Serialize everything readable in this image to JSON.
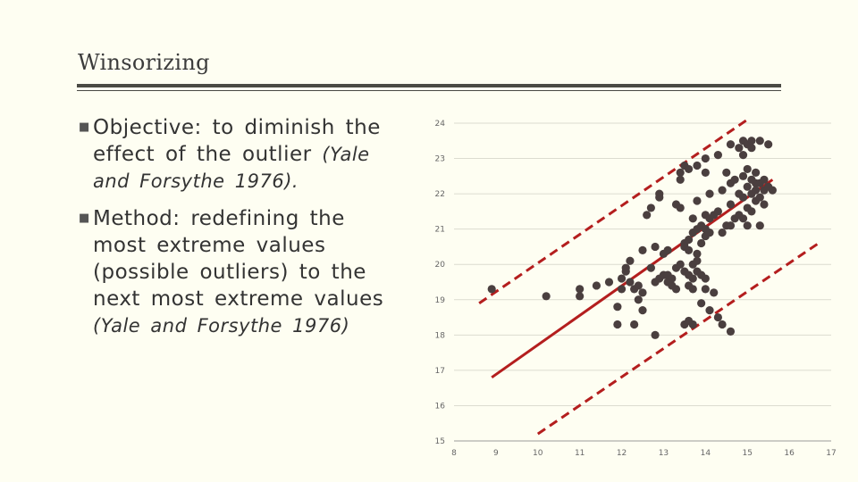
{
  "slide": {
    "title": "Winsorizing",
    "bullets": [
      {
        "text": "Objective: to diminish the effect of the outlier ",
        "citation": "(Yale and Forsythe 1976)."
      },
      {
        "text": "Method: redefining the most extreme values (possible outliers) to the next most extreme values ",
        "citation": "(Yale and Forsythe 1976)"
      }
    ]
  },
  "colors": {
    "points": "#4a3f3f",
    "fit_line": "#b41e1e",
    "bounds": "#b41e1e",
    "grid": "#dcdcd0"
  },
  "icons": {
    "bullet": "square-bullet-icon"
  },
  "chart_data": {
    "type": "scatter",
    "title": "",
    "xlabel": "",
    "ylabel": "",
    "xlim": [
      8,
      17
    ],
    "ylim": [
      15,
      24
    ],
    "x_ticks": [
      8,
      9,
      10,
      11,
      12,
      13,
      14,
      15,
      16,
      17
    ],
    "y_ticks": [
      15,
      16,
      17,
      18,
      19,
      20,
      21,
      22,
      23,
      24
    ],
    "grid": "horizontal",
    "points": [
      [
        8.9,
        19.3
      ],
      [
        10.2,
        19.1
      ],
      [
        11.0,
        19.3
      ],
      [
        11.0,
        19.1
      ],
      [
        11.4,
        19.4
      ],
      [
        11.7,
        19.5
      ],
      [
        11.9,
        18.3
      ],
      [
        11.9,
        18.8
      ],
      [
        12.0,
        19.6
      ],
      [
        12.0,
        19.3
      ],
      [
        12.1,
        19.8
      ],
      [
        12.1,
        19.9
      ],
      [
        12.2,
        20.1
      ],
      [
        12.2,
        19.5
      ],
      [
        12.3,
        19.3
      ],
      [
        12.4,
        19.4
      ],
      [
        12.5,
        20.4
      ],
      [
        12.5,
        19.2
      ],
      [
        12.5,
        18.7
      ],
      [
        12.6,
        21.4
      ],
      [
        12.7,
        21.6
      ],
      [
        12.7,
        19.9
      ],
      [
        12.8,
        19.5
      ],
      [
        12.8,
        18.0
      ],
      [
        12.8,
        20.5
      ],
      [
        12.9,
        22.0
      ],
      [
        12.9,
        21.9
      ],
      [
        12.9,
        19.6
      ],
      [
        13.0,
        19.7
      ],
      [
        13.0,
        20.3
      ],
      [
        13.1,
        19.5
      ],
      [
        13.1,
        19.7
      ],
      [
        13.2,
        19.4
      ],
      [
        13.2,
        19.6
      ],
      [
        13.3,
        21.7
      ],
      [
        13.3,
        19.9
      ],
      [
        13.3,
        19.3
      ],
      [
        13.4,
        22.6
      ],
      [
        13.4,
        22.4
      ],
      [
        13.4,
        20.0
      ],
      [
        13.5,
        22.8
      ],
      [
        13.5,
        20.6
      ],
      [
        13.5,
        20.5
      ],
      [
        13.5,
        19.8
      ],
      [
        13.5,
        18.3
      ],
      [
        13.6,
        22.7
      ],
      [
        13.6,
        20.7
      ],
      [
        13.6,
        20.4
      ],
      [
        13.6,
        19.7
      ],
      [
        13.6,
        19.4
      ],
      [
        13.6,
        18.4
      ],
      [
        13.7,
        21.3
      ],
      [
        13.7,
        20.9
      ],
      [
        13.7,
        20.0
      ],
      [
        13.7,
        19.6
      ],
      [
        13.7,
        19.3
      ],
      [
        13.7,
        18.3
      ],
      [
        13.8,
        22.8
      ],
      [
        13.8,
        21.8
      ],
      [
        13.8,
        21.0
      ],
      [
        13.8,
        20.3
      ],
      [
        13.8,
        20.1
      ],
      [
        13.8,
        19.8
      ],
      [
        13.9,
        21.1
      ],
      [
        13.9,
        20.6
      ],
      [
        13.9,
        19.7
      ],
      [
        13.9,
        18.9
      ],
      [
        14.0,
        23.0
      ],
      [
        14.0,
        22.6
      ],
      [
        14.0,
        21.4
      ],
      [
        14.0,
        21.0
      ],
      [
        14.0,
        20.8
      ],
      [
        14.0,
        19.6
      ],
      [
        14.0,
        19.3
      ],
      [
        14.1,
        22.0
      ],
      [
        14.1,
        21.3
      ],
      [
        14.1,
        20.9
      ],
      [
        14.1,
        18.7
      ],
      [
        14.2,
        21.4
      ],
      [
        14.2,
        19.2
      ],
      [
        14.3,
        23.1
      ],
      [
        14.3,
        21.5
      ],
      [
        14.3,
        18.5
      ],
      [
        14.4,
        22.1
      ],
      [
        14.4,
        20.9
      ],
      [
        14.4,
        18.3
      ],
      [
        14.5,
        22.6
      ],
      [
        14.5,
        21.1
      ],
      [
        14.6,
        23.4
      ],
      [
        14.6,
        22.3
      ],
      [
        14.6,
        21.7
      ],
      [
        14.6,
        21.1
      ],
      [
        14.7,
        22.4
      ],
      [
        14.7,
        21.3
      ],
      [
        14.8,
        23.3
      ],
      [
        14.8,
        22.0
      ],
      [
        14.8,
        21.4
      ],
      [
        14.9,
        23.5
      ],
      [
        14.9,
        22.5
      ],
      [
        14.9,
        21.9
      ],
      [
        14.9,
        21.3
      ],
      [
        15.0,
        23.4
      ],
      [
        15.0,
        22.7
      ],
      [
        15.0,
        22.2
      ],
      [
        15.0,
        21.6
      ],
      [
        15.0,
        21.1
      ],
      [
        15.1,
        23.5
      ],
      [
        15.1,
        23.3
      ],
      [
        15.1,
        22.4
      ],
      [
        15.1,
        22.0
      ],
      [
        15.1,
        21.5
      ],
      [
        15.2,
        22.6
      ],
      [
        15.2,
        22.3
      ],
      [
        15.2,
        22.1
      ],
      [
        15.2,
        21.8
      ],
      [
        15.3,
        23.5
      ],
      [
        15.3,
        22.3
      ],
      [
        15.3,
        21.9
      ],
      [
        15.3,
        21.1
      ],
      [
        15.4,
        22.4
      ],
      [
        15.4,
        22.1
      ],
      [
        15.4,
        21.7
      ],
      [
        15.5,
        23.4
      ],
      [
        15.5,
        22.2
      ],
      [
        15.6,
        22.1
      ],
      [
        13.4,
        21.6
      ],
      [
        13.1,
        20.4
      ],
      [
        12.3,
        18.3
      ],
      [
        14.6,
        18.1
      ],
      [
        14.9,
        23.1
      ],
      [
        12.4,
        19.0
      ]
    ],
    "fit_line": {
      "from": [
        8.9,
        16.8
      ],
      "to": [
        15.6,
        22.4
      ]
    },
    "upper_bound": {
      "from": [
        8.6,
        18.9
      ],
      "to": [
        15.0,
        24.1
      ]
    },
    "lower_bound": {
      "from": [
        10.0,
        15.2
      ],
      "to": [
        16.7,
        20.6
      ]
    }
  }
}
